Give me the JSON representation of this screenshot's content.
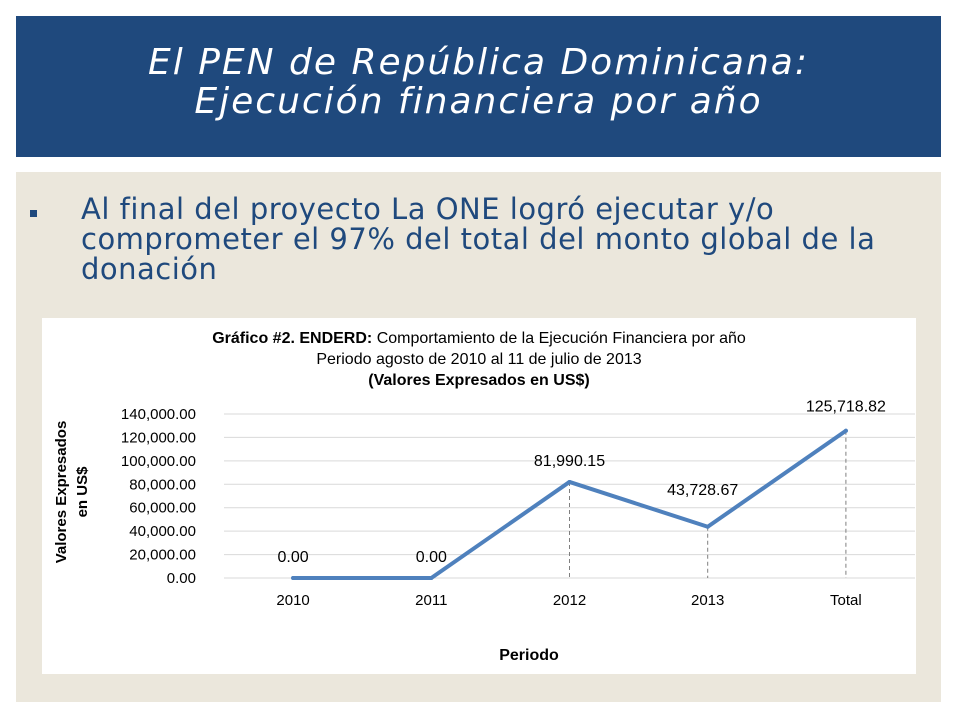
{
  "slide": {
    "title_line1": "El PEN de República Dominicana:",
    "title_line2": "Ejecución financiera por año",
    "bullet": "Al final del proyecto La ONE logró ejecutar y/o comprometer el 97% del total del monto global de la donación"
  },
  "colors": {
    "title_bg": "#1f497d",
    "content_bg": "#ebe7dc",
    "line": "#4f81bd"
  },
  "chart_data": {
    "type": "line",
    "title_bold": "Gráfico #2. ENDERD:",
    "title_rest": "Comportamiento de la Ejecución Financiera por año",
    "subtitle": "Periodo agosto de 2010 al 11 de julio de 2013",
    "subtitle2": "(Valores Expresados en US$)",
    "xlabel": "Periodo",
    "ylabel_line1": "Valores Expresados",
    "ylabel_line2": "en US$",
    "categories": [
      "2010",
      "2011",
      "2012",
      "2013",
      "Total"
    ],
    "values": [
      0.0,
      0.0,
      81990.15,
      43728.67,
      125718.82
    ],
    "data_labels": [
      "0.00",
      "0.00",
      "81,990.15",
      "43,728.67",
      "125,718.82"
    ],
    "ylim": [
      0,
      140000
    ],
    "yticks": [
      "0.00",
      "20,000.00",
      "40,000.00",
      "60,000.00",
      "80,000.00",
      "100,000.00",
      "120,000.00",
      "140,000.00"
    ],
    "grid": true,
    "drop_lines": true
  }
}
